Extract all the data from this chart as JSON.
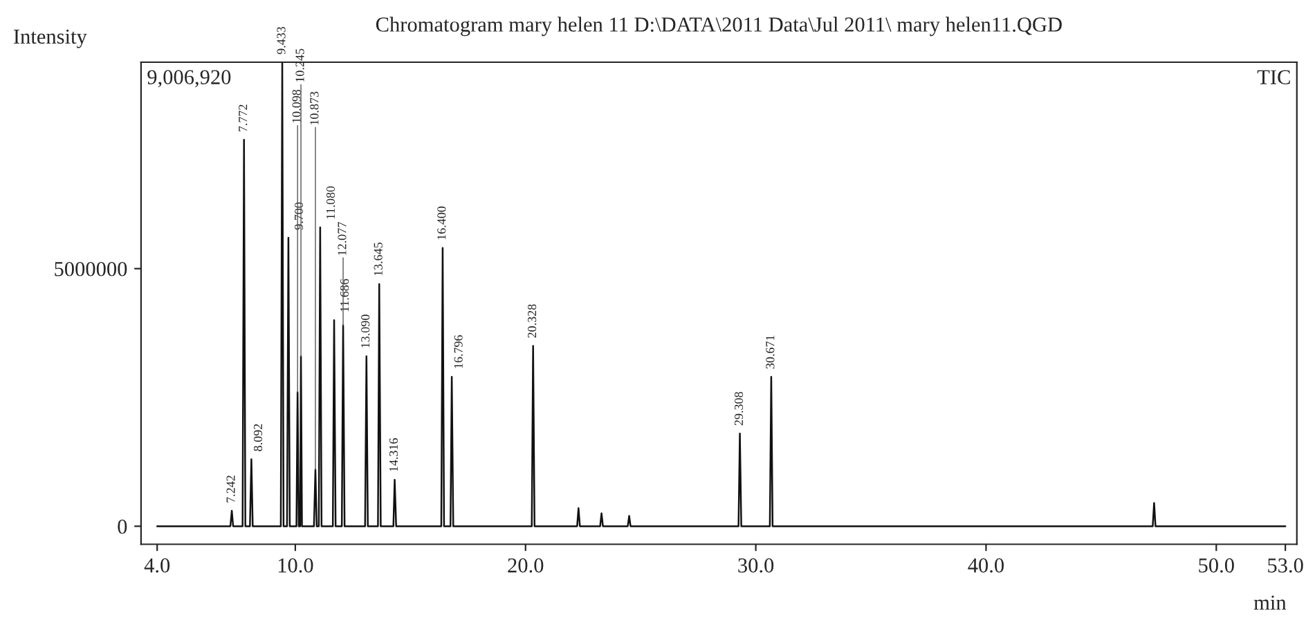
{
  "chart_data": {
    "type": "line",
    "title": "Chromatogram mary helen 11 D:\\DATA\\2011 Data\\Jul 2011\\ mary helen11.QGD",
    "xlabel": "min",
    "ylabel": "Intensity",
    "series": [
      {
        "color": "#111111",
        "x": [
          4.0,
          7.18,
          7.242,
          7.3,
          7.71,
          7.772,
          7.83,
          8.03,
          8.092,
          8.15,
          9.37,
          9.433,
          9.49,
          9.64,
          9.7,
          9.76,
          10.05,
          10.098,
          10.15,
          10.21,
          10.245,
          10.29,
          10.81,
          10.873,
          10.93,
          11.02,
          11.08,
          11.14,
          11.63,
          11.686,
          11.75,
          12.02,
          12.077,
          12.14,
          13.03,
          13.09,
          13.15,
          13.59,
          13.645,
          13.71,
          14.26,
          14.316,
          14.38,
          16.34,
          16.4,
          16.46,
          16.74,
          16.796,
          16.86,
          20.27,
          20.328,
          20.39,
          22.24,
          22.3,
          22.36,
          23.24,
          23.3,
          23.36,
          24.44,
          24.5,
          24.56,
          29.25,
          29.308,
          29.37,
          30.61,
          30.671,
          30.73,
          47.24,
          47.3,
          47.36,
          53.0
        ],
        "values": [
          0,
          0,
          300000,
          0,
          0,
          7500000,
          0,
          0,
          1300000,
          0,
          0,
          9006920,
          0,
          0,
          5600000,
          0,
          0,
          2600000,
          0,
          0,
          3300000,
          0,
          0,
          1100000,
          0,
          0,
          5800000,
          0,
          0,
          4000000,
          0,
          0,
          3900000,
          0,
          0,
          3300000,
          0,
          0,
          4700000,
          0,
          0,
          900000,
          0,
          0,
          5400000,
          0,
          0,
          2900000,
          0,
          0,
          3500000,
          0,
          0,
          350000,
          0,
          0,
          250000,
          0,
          0,
          200000,
          0,
          0,
          1800000,
          0,
          0,
          2900000,
          0,
          0,
          450000,
          0,
          0
        ]
      }
    ],
    "xlim": [
      3.3,
      53.5
    ],
    "ylim": [
      -350000,
      9006920
    ],
    "xticks": [
      {
        "value": 4,
        "label": "4.0"
      },
      {
        "value": 10,
        "label": "10.0"
      },
      {
        "value": 20,
        "label": "20.0"
      },
      {
        "value": 30,
        "label": "30.0"
      },
      {
        "value": 40,
        "label": "40.0"
      },
      {
        "value": 50,
        "label": "50.0"
      },
      {
        "value": 53,
        "label": "53.0"
      }
    ],
    "yticks": [
      0,
      5000000
    ],
    "annotations": [
      "9,006,920",
      "TIC",
      {
        "text": "7.242",
        "x": 7.242,
        "y": 300000
      },
      {
        "text": "7.772",
        "x": 7.772,
        "y": 7500000
      },
      {
        "text": "8.092",
        "x": 8.092,
        "y": 1300000
      },
      {
        "text": "9.433",
        "x": 9.433,
        "y": 9006920
      },
      {
        "text": "9.700",
        "x": 9.7,
        "y": 5600000
      },
      {
        "text": "10.098",
        "x": 10.098,
        "y": 2600000
      },
      {
        "text": "10.245",
        "x": 10.245,
        "y": 3300000
      },
      {
        "text": "10.873",
        "x": 10.873,
        "y": 1100000
      },
      {
        "text": "11.080",
        "x": 11.08,
        "y": 5800000
      },
      {
        "text": "11.686",
        "x": 11.686,
        "y": 4000000
      },
      {
        "text": "12.077",
        "x": 12.077,
        "y": 3900000
      },
      {
        "text": "13.090",
        "x": 13.09,
        "y": 3300000
      },
      {
        "text": "13.645",
        "x": 13.645,
        "y": 4700000
      },
      {
        "text": "14.316",
        "x": 14.316,
        "y": 900000
      },
      {
        "text": "16.400",
        "x": 16.4,
        "y": 5400000
      },
      {
        "text": "16.796",
        "x": 16.796,
        "y": 2900000
      },
      {
        "text": "20.328",
        "x": 20.328,
        "y": 3500000
      },
      {
        "text": "29.308",
        "x": 29.308,
        "y": 1800000
      },
      {
        "text": "30.671",
        "x": 30.671,
        "y": 2900000
      }
    ],
    "grid": false,
    "legend": false,
    "marker": "none",
    "line_style": "solid"
  }
}
